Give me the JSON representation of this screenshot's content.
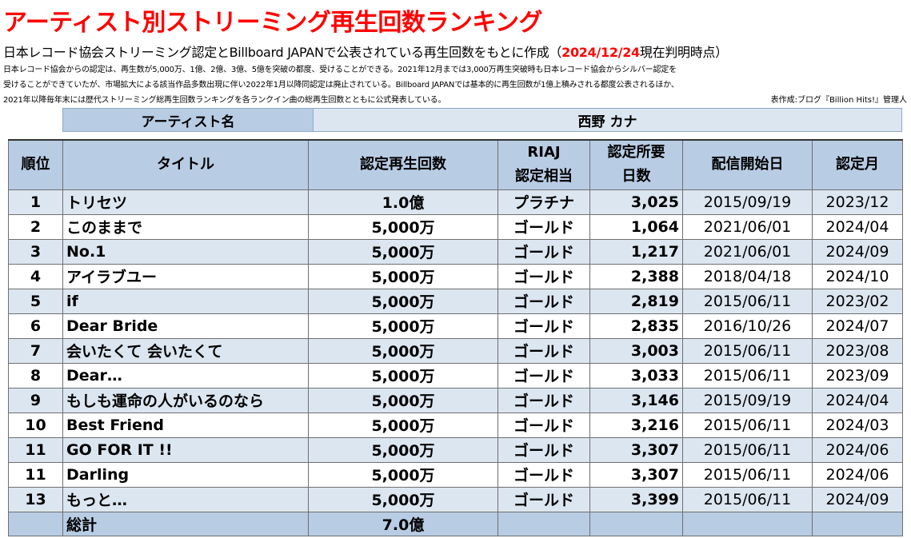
{
  "title": "アーティスト別ストリーミング再生回数ランキング",
  "subtitle": {
    "prefix": "日本レコード協会ストリーミング認定とBillboard JAPANで公表されている再生回数をもとに作成（",
    "date": "2024/12/24",
    "suffix": "現在判明時点）"
  },
  "notes": [
    "日本レコード協会からの認定は、再生数が5,000万、1億、2億、3億、5億を突破の都度、受けることができる。2021年12月までは3,000万再生突破時も日本レコード協会からシルバー認定を",
    "受けることができていたが、市場拡大による該当作品多数出現に伴い2022年1月以降同認定は廃止されている。Billboard JAPANでは基本的に再生回数が1億上積みされる都度公表されるほか、",
    "2021年以降毎年末には歴代ストリーミング総再生回数ランキングを各ランクイン曲の総再生回数とともに公式発表している。"
  ],
  "credit": "表作成:ブログ『Billion Hits!』管理人",
  "artist": {
    "label": "アーティスト名",
    "name": "西野 カナ"
  },
  "table": {
    "headers": {
      "rank": "順位",
      "title": "タイトル",
      "plays": "認定再生回数",
      "riaj_1": "RIAJ",
      "riaj_2": "認定相当",
      "days_1": "認定所要",
      "days_2": "日数",
      "start": "配信開始日",
      "month": "認定月"
    },
    "rows": [
      {
        "rank": "1",
        "title": "トリセツ",
        "plays": "1.0億",
        "cert": "プラチナ",
        "days": "3,025",
        "start": "2015/09/19",
        "month": "2023/12"
      },
      {
        "rank": "2",
        "title": "このままで",
        "plays": "5,000万",
        "cert": "ゴールド",
        "days": "1,064",
        "start": "2021/06/01",
        "month": "2024/04"
      },
      {
        "rank": "3",
        "title": "No.1",
        "plays": "5,000万",
        "cert": "ゴールド",
        "days": "1,217",
        "start": "2021/06/01",
        "month": "2024/09"
      },
      {
        "rank": "4",
        "title": "アイラブユー",
        "plays": "5,000万",
        "cert": "ゴールド",
        "days": "2,388",
        "start": "2018/04/18",
        "month": "2024/10"
      },
      {
        "rank": "5",
        "title": "if",
        "plays": "5,000万",
        "cert": "ゴールド",
        "days": "2,819",
        "start": "2015/06/11",
        "month": "2023/02"
      },
      {
        "rank": "6",
        "title": "Dear Bride",
        "plays": "5,000万",
        "cert": "ゴールド",
        "days": "2,835",
        "start": "2016/10/26",
        "month": "2024/07"
      },
      {
        "rank": "7",
        "title": "会いたくて 会いたくて",
        "plays": "5,000万",
        "cert": "ゴールド",
        "days": "3,003",
        "start": "2015/06/11",
        "month": "2023/08"
      },
      {
        "rank": "8",
        "title": "Dear…",
        "plays": "5,000万",
        "cert": "ゴールド",
        "days": "3,033",
        "start": "2015/06/11",
        "month": "2023/09"
      },
      {
        "rank": "9",
        "title": "もしも運命の人がいるのなら",
        "plays": "5,000万",
        "cert": "ゴールド",
        "days": "3,146",
        "start": "2015/09/19",
        "month": "2024/04"
      },
      {
        "rank": "10",
        "title": "Best Friend",
        "plays": "5,000万",
        "cert": "ゴールド",
        "days": "3,216",
        "start": "2015/06/11",
        "month": "2024/03"
      },
      {
        "rank": "11",
        "title": "GO FOR IT !!",
        "plays": "5,000万",
        "cert": "ゴールド",
        "days": "3,307",
        "start": "2015/06/11",
        "month": "2024/06"
      },
      {
        "rank": "11",
        "title": "Darling",
        "plays": "5,000万",
        "cert": "ゴールド",
        "days": "3,307",
        "start": "2015/06/11",
        "month": "2024/06"
      },
      {
        "rank": "13",
        "title": "もっと…",
        "plays": "5,000万",
        "cert": "ゴールド",
        "days": "3,399",
        "start": "2015/06/11",
        "month": "2024/09"
      }
    ],
    "total": {
      "label": "総計",
      "plays": "7.0億"
    }
  }
}
